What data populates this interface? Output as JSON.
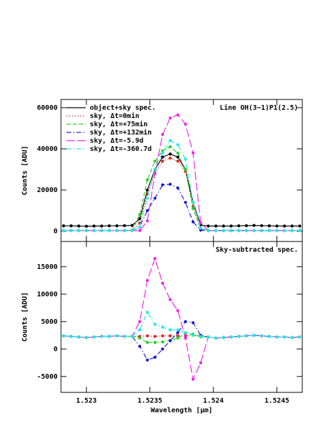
{
  "chart_data": [
    {
      "type": "line",
      "annotation": "Line OH(3−1)P1(2.5)",
      "ylabel": "Counts [ADU]",
      "x": [
        1.52282,
        1.52288,
        1.52294,
        1.523,
        1.52306,
        1.52312,
        1.52318,
        1.52324,
        1.5233,
        1.52336,
        1.52342,
        1.52348,
        1.52354,
        1.5236,
        1.52366,
        1.52372,
        1.52378,
        1.52384,
        1.5239,
        1.52396,
        1.52402,
        1.52408,
        1.52414,
        1.5242,
        1.52426,
        1.52432,
        1.52438,
        1.52444,
        1.5245,
        1.52456,
        1.52462,
        1.52468
      ],
      "xlim": [
        1.5228,
        1.5247
      ],
      "xticks": [
        1.523,
        1.5235,
        1.524,
        1.5245
      ],
      "ylim": [
        -5000,
        64000
      ],
      "yticks": [
        0,
        20000,
        40000,
        60000
      ],
      "legend": "upper left",
      "series": [
        {
          "name": "object+sky spec.",
          "color": "#000000",
          "dash": "none",
          "values": [
            2600,
            2600,
            2500,
            2400,
            2500,
            2500,
            2600,
            2600,
            2700,
            2800,
            6000,
            20000,
            30000,
            36000,
            37500,
            36000,
            30000,
            14000,
            3000,
            2500,
            2500,
            2500,
            2500,
            2600,
            2700,
            2800,
            2700,
            2600,
            2500,
            2500,
            2500,
            2500
          ]
        },
        {
          "name": "sky, Δt=0min",
          "color": "#e8201a",
          "dash": "1.5,2.5",
          "values": [
            300,
            300,
            300,
            300,
            300,
            300,
            300,
            300,
            300,
            400,
            4000,
            18000,
            28000,
            34000,
            35500,
            34000,
            29000,
            12000,
            1000,
            300,
            300,
            300,
            300,
            300,
            300,
            300,
            300,
            300,
            300,
            300,
            300,
            300
          ]
        },
        {
          "name": "sky, Δt=+75min",
          "color": "#22d022",
          "dash": "6,3",
          "values": [
            300,
            300,
            300,
            300,
            300,
            300,
            300,
            300,
            300,
            500,
            8000,
            25000,
            34000,
            39000,
            41000,
            38000,
            30000,
            11000,
            1000,
            300,
            300,
            300,
            300,
            300,
            300,
            300,
            300,
            300,
            300,
            300,
            300,
            300
          ]
        },
        {
          "name": "sky, Δt=+132min",
          "color": "#1a1ad0",
          "dash": "7,3,1.5,3",
          "values": [
            300,
            300,
            300,
            300,
            300,
            300,
            300,
            300,
            300,
            300,
            2000,
            10000,
            16000,
            22500,
            22800,
            21000,
            14000,
            4500,
            500,
            300,
            300,
            300,
            300,
            300,
            300,
            300,
            300,
            300,
            300,
            300,
            300,
            300
          ]
        },
        {
          "name": "sky, Δt=-5.9d",
          "color": "#ee22ee",
          "dash": "12,4",
          "values": [
            300,
            300,
            300,
            300,
            300,
            300,
            300,
            300,
            300,
            300,
            300,
            5000,
            28000,
            47000,
            55000,
            56500,
            52000,
            38000,
            4000,
            300,
            300,
            300,
            300,
            300,
            300,
            300,
            300,
            300,
            300,
            300,
            300,
            300
          ]
        },
        {
          "name": "sky, Δt=-360.7d",
          "color": "#22e8e8",
          "dash": "7,3,1.5,3",
          "values": [
            300,
            300,
            300,
            300,
            300,
            300,
            300,
            300,
            300,
            300,
            2000,
            16000,
            30000,
            38000,
            44000,
            42000,
            35000,
            14000,
            1500,
            300,
            300,
            300,
            300,
            300,
            300,
            300,
            300,
            300,
            300,
            300,
            300,
            300
          ]
        }
      ]
    },
    {
      "type": "line",
      "annotation": "Sky-subtracted spec.",
      "ylabel": "Counts [ADU]",
      "xlabel": "Wavelength [μm]",
      "x": [
        1.52282,
        1.52288,
        1.52294,
        1.523,
        1.52306,
        1.52312,
        1.52318,
        1.52324,
        1.5233,
        1.52336,
        1.52342,
        1.52348,
        1.52354,
        1.5236,
        1.52366,
        1.52372,
        1.52378,
        1.52384,
        1.5239,
        1.52396,
        1.52402,
        1.52408,
        1.52414,
        1.5242,
        1.52426,
        1.52432,
        1.52438,
        1.52444,
        1.5245,
        1.52456,
        1.52462,
        1.52468
      ],
      "xlim": [
        1.5228,
        1.5247
      ],
      "xticks": [
        1.523,
        1.5235,
        1.524,
        1.5245
      ],
      "ylim": [
        -7900,
        19600
      ],
      "yticks": [
        -5000,
        0,
        5000,
        10000,
        15000
      ],
      "series": [
        {
          "color": "#e8201a",
          "dash": "1.5,2.5",
          "values": [
            2400,
            2300,
            2200,
            2100,
            2200,
            2300,
            2300,
            2400,
            2300,
            2300,
            2300,
            2400,
            2300,
            2400,
            2400,
            2400,
            2400,
            2500,
            2400,
            2200,
            2000,
            2100,
            2200,
            2300,
            2400,
            2500,
            2400,
            2300,
            2200,
            2200,
            2100,
            2200
          ]
        },
        {
          "color": "#22d022",
          "dash": "6,3",
          "values": [
            2400,
            2300,
            2200,
            2100,
            2200,
            2300,
            2300,
            2400,
            2300,
            2300,
            2000,
            1200,
            1200,
            1300,
            1600,
            2000,
            2800,
            2700,
            2200,
            2200,
            2000,
            2100,
            2200,
            2300,
            2400,
            2500,
            2400,
            2300,
            2200,
            2200,
            2100,
            2200
          ]
        },
        {
          "color": "#1a1ad0",
          "dash": "7,3,1.5,3",
          "values": [
            2400,
            2300,
            2200,
            2100,
            2200,
            2300,
            2300,
            2400,
            2300,
            2300,
            500,
            -2000,
            -1500,
            0,
            1500,
            3000,
            5000,
            4800,
            2500,
            2200,
            2000,
            2100,
            2200,
            2300,
            2400,
            2500,
            2400,
            2300,
            2200,
            2200,
            2100,
            2200
          ]
        },
        {
          "color": "#ee22ee",
          "dash": "12,4",
          "values": [
            2400,
            2300,
            2200,
            2100,
            2200,
            2300,
            2300,
            2400,
            2300,
            2300,
            5000,
            12500,
            16500,
            12000,
            9000,
            7000,
            2000,
            -5500,
            -2500,
            2200,
            2000,
            2100,
            2200,
            2300,
            2400,
            2500,
            2400,
            2300,
            2200,
            2200,
            2100,
            2200
          ]
        },
        {
          "color": "#22e8e8",
          "dash": "7,3,1.5,3",
          "values": [
            2400,
            2300,
            2200,
            2100,
            2200,
            2300,
            2300,
            2400,
            2300,
            2300,
            3500,
            6700,
            4500,
            4000,
            3500,
            3500,
            3000,
            2500,
            2300,
            2200,
            2000,
            2100,
            2200,
            2300,
            2400,
            2500,
            2400,
            2300,
            2200,
            2200,
            2100,
            2200
          ]
        }
      ]
    }
  ]
}
